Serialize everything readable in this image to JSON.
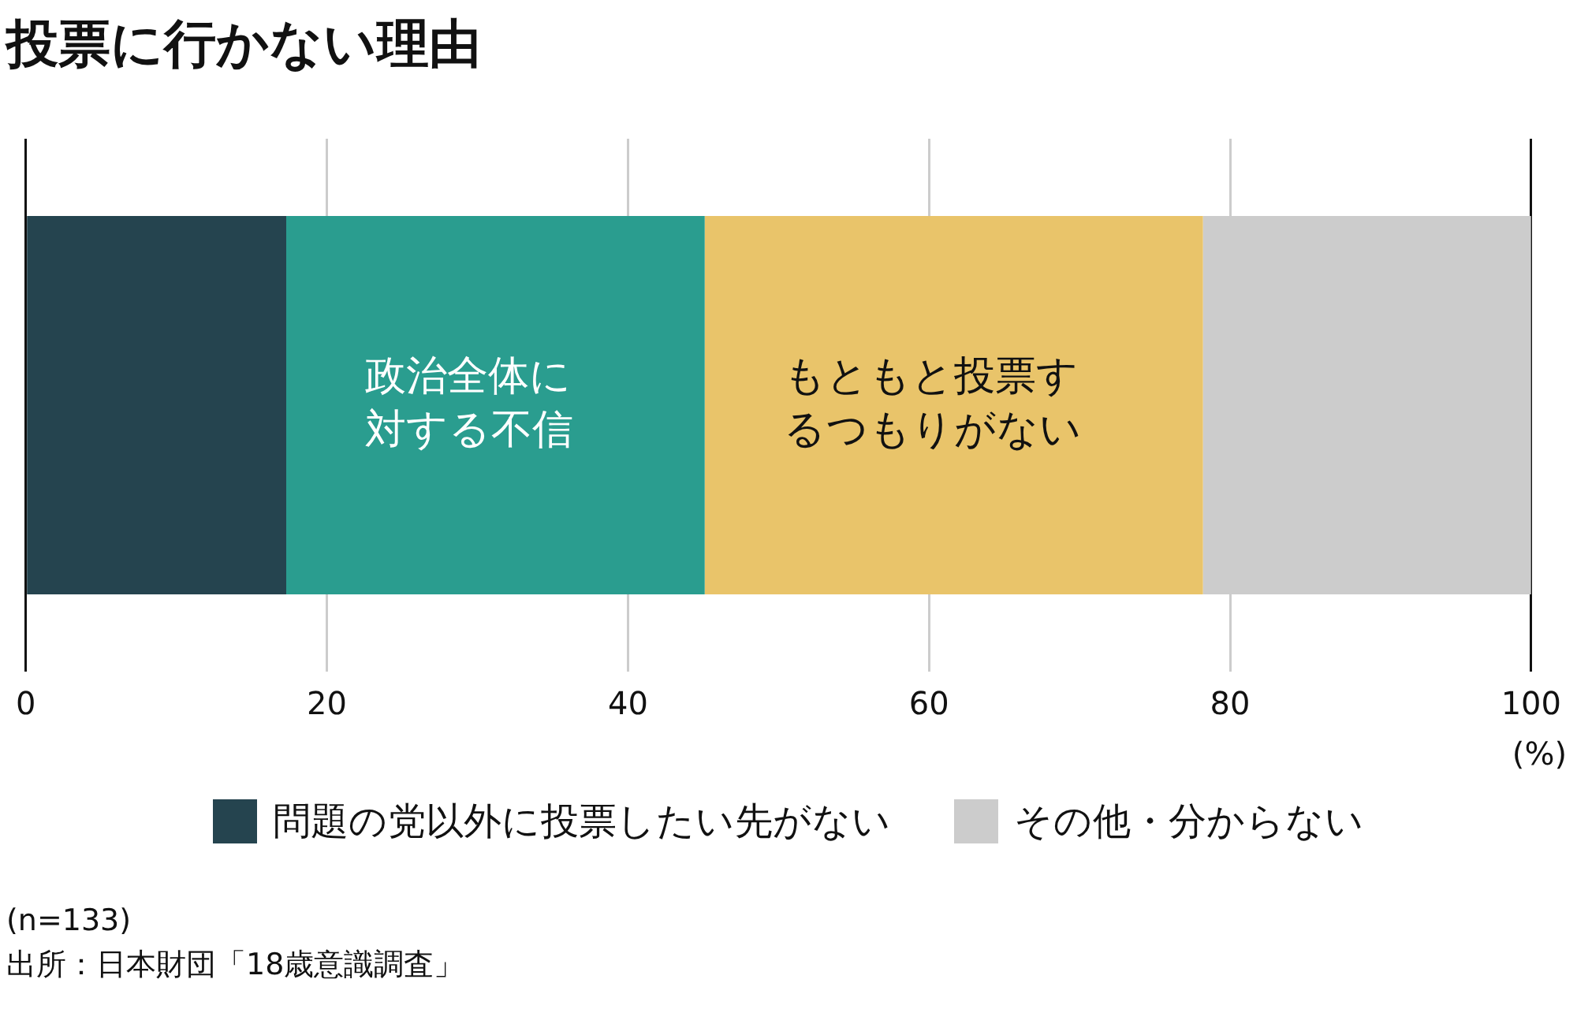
{
  "chart_data": {
    "type": "bar",
    "title": "投票に行かない理由",
    "orientation": "horizontal",
    "stacked": true,
    "categories": [
      null
    ],
    "series": [
      {
        "name": "問題の党以外に投票したい先がない",
        "color": "#25444f",
        "values": [
          17.3
        ]
      },
      {
        "name": "政治全体に対する不信",
        "color": "#2a9d8f",
        "values": [
          27.8
        ]
      },
      {
        "name": "もともと投票するつもりがない",
        "color": "#e9c46a",
        "values": [
          33.1
        ]
      },
      {
        "name": "その他・分からない",
        "color": "#cccccc",
        "values": [
          21.8
        ]
      }
    ],
    "xlim": [
      0,
      100
    ],
    "xticks": [
      0,
      20,
      40,
      60,
      80,
      100
    ],
    "xlabel": "(%)",
    "grid": "x",
    "legend": "bottom",
    "annotations": [
      "(n=133)",
      "出所：日本財団「18歳意識調査」"
    ]
  }
}
